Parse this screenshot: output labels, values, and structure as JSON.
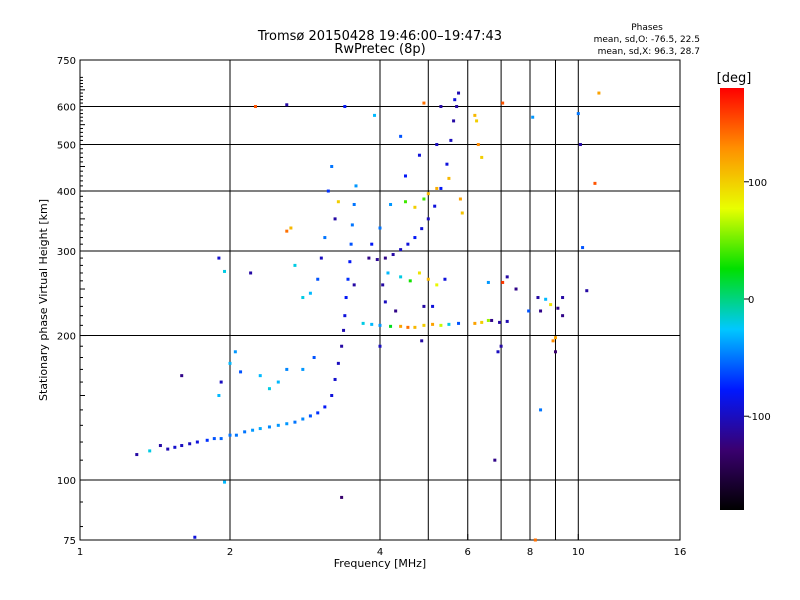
{
  "header": {
    "title_line1": "Tromsø 20150428 19:46:00–19:47:43",
    "title_line2": "RwPretec (8p)",
    "stats_title": "Phases",
    "stats_o": "mean, sd,O: -76.5, 22.5",
    "stats_x": "mean, sd,X:  96.3, 28.7"
  },
  "colorbar": {
    "label": "[deg]",
    "ticks": [
      {
        "value": 100,
        "label": "100"
      },
      {
        "value": 0,
        "label": "0"
      },
      {
        "value": -100,
        "label": "-100"
      }
    ],
    "range": [
      -180,
      180
    ],
    "colors": [
      "#000000",
      "#3a0070",
      "#0018ff",
      "#00c8ff",
      "#00e000",
      "#e8ff00",
      "#ff9000",
      "#ff0000"
    ]
  },
  "chart_data": {
    "type": "scatter",
    "xlabel": "Frequency [MHz]",
    "ylabel": "Stationary phase Virtual Height [km]",
    "x_scale": "log",
    "y_scale": "log",
    "xlim": [
      1,
      16
    ],
    "ylim": [
      75,
      750
    ],
    "xticks": [
      {
        "value": 1,
        "label": "1"
      },
      {
        "value": 2,
        "label": "2"
      },
      {
        "value": 4,
        "label": "4"
      },
      {
        "value": 6,
        "label": "6"
      },
      {
        "value": 8,
        "label": "8"
      },
      {
        "value": 10,
        "label": "10"
      },
      {
        "value": 16,
        "label": "16"
      }
    ],
    "yticks": [
      {
        "value": 75,
        "label": "75"
      },
      {
        "value": 100,
        "label": "100"
      },
      {
        "value": 200,
        "label": "200"
      },
      {
        "value": 300,
        "label": "300"
      },
      {
        "value": 400,
        "label": "400"
      },
      {
        "value": 500,
        "label": "500"
      },
      {
        "value": 600,
        "label": "600"
      },
      {
        "value": 750,
        "label": "750"
      }
    ],
    "grid_x": [
      2,
      4,
      5,
      6,
      7,
      8,
      9,
      10
    ],
    "grid_y": [
      100,
      200,
      300,
      400,
      500,
      600
    ],
    "series": [
      {
        "points": [
          [
            1.3,
            113,
            -110
          ],
          [
            1.38,
            115,
            -20
          ],
          [
            1.45,
            118,
            -110
          ],
          [
            1.5,
            116,
            -105
          ],
          [
            1.55,
            117,
            -95
          ],
          [
            1.6,
            118,
            -100
          ],
          [
            1.66,
            119,
            -100
          ],
          [
            1.72,
            120,
            -90
          ],
          [
            1.8,
            121,
            -70
          ],
          [
            1.86,
            122,
            -60
          ],
          [
            1.92,
            122,
            -55
          ],
          [
            2.0,
            124,
            -50
          ],
          [
            2.06,
            124,
            -50
          ],
          [
            2.14,
            126,
            -50
          ],
          [
            2.22,
            127,
            -40
          ],
          [
            2.3,
            128,
            -35
          ],
          [
            2.4,
            129,
            -45
          ],
          [
            2.5,
            130,
            -40
          ],
          [
            2.6,
            131,
            -40
          ],
          [
            2.7,
            132,
            -50
          ],
          [
            2.8,
            134,
            -45
          ],
          [
            2.9,
            136,
            -60
          ],
          [
            3.0,
            138,
            -70
          ],
          [
            3.1,
            142,
            -80
          ],
          [
            3.2,
            150,
            -90
          ],
          [
            3.25,
            162,
            -95
          ],
          [
            3.3,
            175,
            -100
          ],
          [
            3.35,
            190,
            -110
          ],
          [
            3.38,
            205,
            -105
          ],
          [
            3.4,
            220,
            -90
          ],
          [
            3.42,
            240,
            -80
          ],
          [
            3.45,
            262,
            -70
          ],
          [
            3.48,
            285,
            -80
          ],
          [
            3.5,
            310,
            -60
          ],
          [
            3.52,
            340,
            -50
          ],
          [
            3.55,
            375,
            -50
          ],
          [
            3.58,
            410,
            -40
          ],
          [
            3.4,
            600,
            -80
          ],
          [
            3.25,
            350,
            -110
          ],
          [
            3.3,
            380,
            100
          ],
          [
            3.55,
            255,
            -110
          ],
          [
            1.9,
            150,
            -30
          ],
          [
            1.92,
            160,
            -100
          ],
          [
            2.0,
            175,
            -30
          ],
          [
            2.05,
            185,
            -40
          ],
          [
            2.1,
            168,
            -60
          ],
          [
            2.3,
            165,
            -30
          ],
          [
            2.4,
            155,
            -20
          ],
          [
            2.5,
            160,
            -30
          ],
          [
            2.6,
            170,
            -45
          ],
          [
            2.8,
            170,
            -40
          ],
          [
            2.95,
            180,
            -60
          ],
          [
            1.9,
            290,
            -95
          ],
          [
            1.95,
            272,
            -20
          ],
          [
            2.2,
            270,
            -110
          ],
          [
            2.6,
            330,
            140
          ],
          [
            2.65,
            335,
            110
          ],
          [
            2.7,
            280,
            -20
          ],
          [
            2.8,
            240,
            -20
          ],
          [
            2.9,
            245,
            -30
          ],
          [
            3.0,
            262,
            -60
          ],
          [
            3.1,
            320,
            -50
          ],
          [
            3.15,
            400,
            -70
          ],
          [
            3.2,
            450,
            -50
          ],
          [
            3.05,
            290,
            -100
          ],
          [
            2.25,
            600,
            150
          ],
          [
            2.6,
            605,
            -110
          ],
          [
            1.6,
            165,
            -120
          ],
          [
            1.7,
            76,
            -90
          ],
          [
            1.95,
            99,
            -30
          ],
          [
            3.35,
            92,
            -130
          ],
          [
            3.8,
            290,
            -120
          ],
          [
            3.95,
            288,
            -115
          ],
          [
            4.1,
            290,
            -120
          ],
          [
            4.25,
            295,
            -110
          ],
          [
            4.4,
            302,
            -100
          ],
          [
            4.55,
            310,
            -90
          ],
          [
            4.7,
            320,
            -80
          ],
          [
            4.85,
            334,
            -90
          ],
          [
            5.0,
            350,
            -100
          ],
          [
            5.15,
            372,
            -90
          ],
          [
            5.3,
            405,
            -80
          ],
          [
            5.45,
            455,
            -90
          ],
          [
            5.55,
            510,
            -100
          ],
          [
            5.62,
            560,
            -110
          ],
          [
            5.7,
            600,
            -110
          ],
          [
            5.75,
            640,
            -105
          ],
          [
            5.65,
            620,
            -90
          ],
          [
            3.7,
            212,
            -20
          ],
          [
            3.85,
            211,
            -30
          ],
          [
            4.0,
            210,
            -40
          ],
          [
            4.2,
            209,
            20
          ],
          [
            4.4,
            209,
            120
          ],
          [
            4.55,
            208,
            140
          ],
          [
            4.7,
            208,
            110
          ],
          [
            4.9,
            210,
            100
          ],
          [
            5.1,
            211,
            120
          ],
          [
            5.3,
            210,
            70
          ],
          [
            5.5,
            211,
            -20
          ],
          [
            5.75,
            212,
            -60
          ],
          [
            6.2,
            212,
            120
          ],
          [
            6.4,
            213,
            100
          ],
          [
            6.7,
            215,
            -120
          ],
          [
            6.95,
            213,
            -110
          ],
          [
            7.2,
            214,
            -105
          ],
          [
            4.05,
            255,
            -110
          ],
          [
            4.1,
            235,
            -100
          ],
          [
            4.15,
            270,
            -30
          ],
          [
            4.4,
            265,
            -20
          ],
          [
            4.6,
            260,
            30
          ],
          [
            4.8,
            270,
            90
          ],
          [
            5.0,
            262,
            110
          ],
          [
            5.2,
            255,
            80
          ],
          [
            5.4,
            262,
            -90
          ],
          [
            4.9,
            230,
            -110
          ],
          [
            5.1,
            230,
            -90
          ],
          [
            4.3,
            225,
            -120
          ],
          [
            4.5,
            380,
            40
          ],
          [
            4.7,
            370,
            100
          ],
          [
            5.0,
            395,
            110
          ],
          [
            5.2,
            405,
            115
          ],
          [
            5.5,
            425,
            110
          ],
          [
            5.8,
            385,
            120
          ],
          [
            5.85,
            360,
            105
          ],
          [
            3.85,
            310,
            -80
          ],
          [
            4.0,
            335,
            -50
          ],
          [
            4.2,
            375,
            -40
          ],
          [
            4.5,
            430,
            -80
          ],
          [
            4.8,
            475,
            -90
          ],
          [
            5.2,
            500,
            -100
          ],
          [
            5.3,
            600,
            -110
          ],
          [
            4.9,
            610,
            140
          ],
          [
            3.9,
            575,
            -30
          ],
          [
            4.4,
            520,
            -60
          ],
          [
            4.9,
            385,
            40
          ],
          [
            6.2,
            575,
            110
          ],
          [
            6.25,
            560,
            100
          ],
          [
            6.3,
            500,
            130
          ],
          [
            6.4,
            470,
            100
          ],
          [
            6.6,
            215,
            60
          ],
          [
            6.6,
            258,
            -40
          ],
          [
            7.05,
            610,
            150
          ],
          [
            7.05,
            258,
            160
          ],
          [
            7.2,
            265,
            -110
          ],
          [
            7.5,
            250,
            -120
          ],
          [
            6.8,
            110,
            -120
          ],
          [
            7.0,
            190,
            -110
          ],
          [
            8.1,
            570,
            -40
          ],
          [
            8.3,
            240,
            -110
          ],
          [
            8.4,
            225,
            -120
          ],
          [
            8.6,
            238,
            -30
          ],
          [
            8.8,
            232,
            90
          ],
          [
            9.1,
            228,
            -120
          ],
          [
            9.0,
            198,
            120
          ],
          [
            8.9,
            195,
            130
          ],
          [
            9.0,
            185,
            -130
          ],
          [
            9.3,
            220,
            -120
          ],
          [
            9.3,
            240,
            -110
          ],
          [
            8.4,
            140,
            -50
          ],
          [
            10.0,
            580,
            -50
          ],
          [
            10.1,
            500,
            -110
          ],
          [
            10.2,
            305,
            -60
          ],
          [
            10.4,
            248,
            -110
          ],
          [
            10.8,
            415,
            150
          ],
          [
            11.0,
            640,
            120
          ],
          [
            8.2,
            75,
            140
          ],
          [
            7.95,
            225,
            -60
          ],
          [
            6.9,
            185,
            -100
          ],
          [
            4.85,
            195,
            -110
          ],
          [
            4.0,
            190,
            -100
          ]
        ]
      }
    ]
  }
}
